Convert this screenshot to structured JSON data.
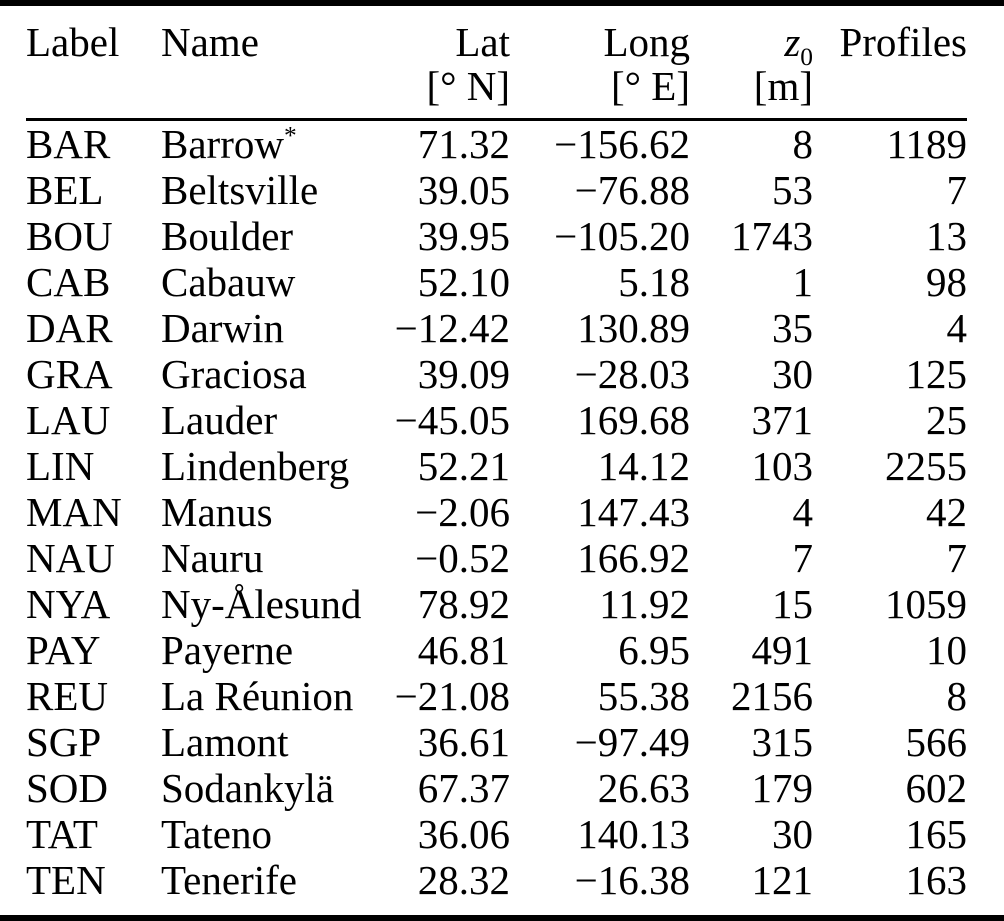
{
  "colors": {
    "text": "#000000",
    "background": "#ffffff",
    "rule": "#000000"
  },
  "table": {
    "columns": [
      {
        "id": "label",
        "line1": "Label",
        "line2": ""
      },
      {
        "id": "name",
        "line1": "Name",
        "line2": ""
      },
      {
        "id": "lat",
        "line1": "Lat",
        "line2": "[° N]"
      },
      {
        "id": "long",
        "line1": "Long",
        "line2": "[° E]"
      },
      {
        "id": "z0",
        "line1": "z",
        "line1_sub": "0",
        "line2": "[m]"
      },
      {
        "id": "profiles",
        "line1": "Profiles",
        "line2": ""
      }
    ],
    "rows": [
      {
        "label": "BAR",
        "name": "Barrow",
        "name_sup": "*",
        "lat": "71.32",
        "long": "−156.62",
        "z0": "8",
        "profiles": "1189"
      },
      {
        "label": "BEL",
        "name": "Beltsville",
        "name_sup": "",
        "lat": "39.05",
        "long": "−76.88",
        "z0": "53",
        "profiles": "7"
      },
      {
        "label": "BOU",
        "name": "Boulder",
        "name_sup": "",
        "lat": "39.95",
        "long": "−105.20",
        "z0": "1743",
        "profiles": "13"
      },
      {
        "label": "CAB",
        "name": "Cabauw",
        "name_sup": "",
        "lat": "52.10",
        "long": "5.18",
        "z0": "1",
        "profiles": "98"
      },
      {
        "label": "DAR",
        "name": "Darwin",
        "name_sup": "",
        "lat": "−12.42",
        "long": "130.89",
        "z0": "35",
        "profiles": "4"
      },
      {
        "label": "GRA",
        "name": "Graciosa",
        "name_sup": "",
        "lat": "39.09",
        "long": "−28.03",
        "z0": "30",
        "profiles": "125"
      },
      {
        "label": "LAU",
        "name": "Lauder",
        "name_sup": "",
        "lat": "−45.05",
        "long": "169.68",
        "z0": "371",
        "profiles": "25"
      },
      {
        "label": "LIN",
        "name": "Lindenberg",
        "name_sup": "",
        "lat": "52.21",
        "long": "14.12",
        "z0": "103",
        "profiles": "2255"
      },
      {
        "label": "MAN",
        "name": "Manus",
        "name_sup": "",
        "lat": "−2.06",
        "long": "147.43",
        "z0": "4",
        "profiles": "42"
      },
      {
        "label": "NAU",
        "name": "Nauru",
        "name_sup": "",
        "lat": "−0.52",
        "long": "166.92",
        "z0": "7",
        "profiles": "7"
      },
      {
        "label": "NYA",
        "name": "Ny-Ålesund",
        "name_sup": "",
        "lat": "78.92",
        "long": "11.92",
        "z0": "15",
        "profiles": "1059"
      },
      {
        "label": "PAY",
        "name": "Payerne",
        "name_sup": "",
        "lat": "46.81",
        "long": "6.95",
        "z0": "491",
        "profiles": "10"
      },
      {
        "label": "REU",
        "name": "La Réunion",
        "name_sup": "",
        "lat": "−21.08",
        "long": "55.38",
        "z0": "2156",
        "profiles": "8"
      },
      {
        "label": "SGP",
        "name": "Lamont",
        "name_sup": "",
        "lat": "36.61",
        "long": "−97.49",
        "z0": "315",
        "profiles": "566"
      },
      {
        "label": "SOD",
        "name": "Sodankylä",
        "name_sup": "",
        "lat": "67.37",
        "long": "26.63",
        "z0": "179",
        "profiles": "602"
      },
      {
        "label": "TAT",
        "name": "Tateno",
        "name_sup": "",
        "lat": "36.06",
        "long": "140.13",
        "z0": "30",
        "profiles": "165"
      },
      {
        "label": "TEN",
        "name": "Tenerife",
        "name_sup": "",
        "lat": "28.32",
        "long": "−16.38",
        "z0": "121",
        "profiles": "163"
      }
    ]
  }
}
